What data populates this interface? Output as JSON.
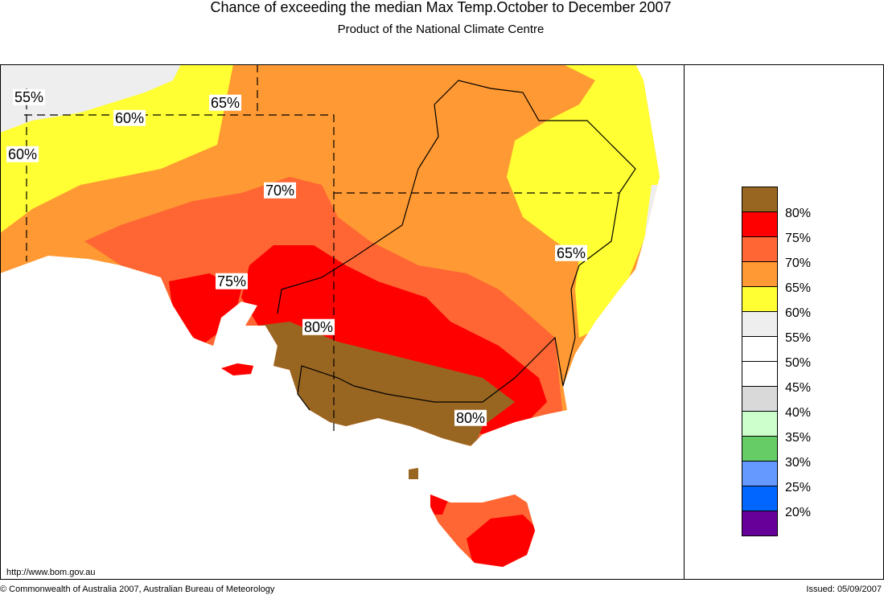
{
  "header": {
    "title": "Chance of exceeding the median Max Temp.October to December 2007",
    "subtitle": "Product of the National Climate Centre"
  },
  "map": {
    "labels": [
      "55%",
      "60%",
      "65%",
      "60%",
      "70%",
      "75%",
      "80%",
      "65%",
      "80%"
    ]
  },
  "legend": {
    "colors": [
      "#996622",
      "#ff0000",
      "#ff6633",
      "#ff9933",
      "#ffff33",
      "#eeeeee",
      "#ffffff",
      "#ffffff",
      "#d9d9d9",
      "#ccffcc",
      "#66cc66",
      "#6699ff",
      "#0066ff",
      "#660099"
    ],
    "labels": [
      "80%",
      "75%",
      "70%",
      "65%",
      "60%",
      "55%",
      "50%",
      "45%",
      "40%",
      "35%",
      "30%",
      "25%",
      "20%"
    ]
  },
  "footer": {
    "url": "http://www.bom.gov.au",
    "copyright": "© Commonwealth of Australia 2007, Australian Bureau of Meteorology",
    "issued": "Issued: 05/09/2007"
  }
}
